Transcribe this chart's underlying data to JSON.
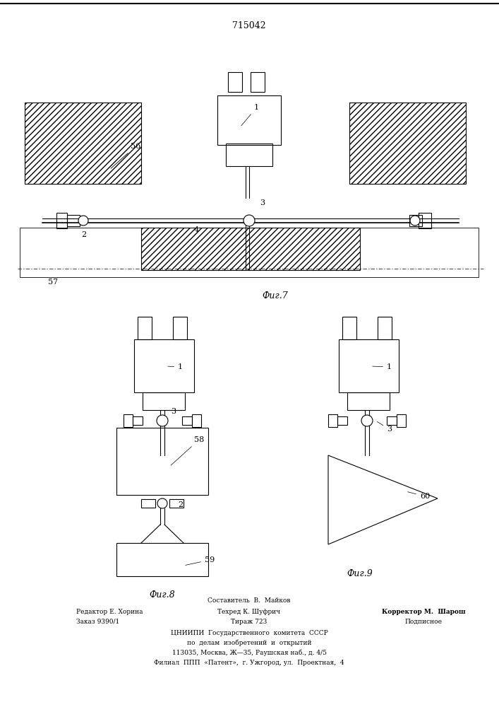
{
  "patent_number": "715042",
  "bg_color": "#ffffff",
  "line_color": "#000000",
  "fig7_label": "Фиг.7",
  "fig8_label": "Фиг.8",
  "fig9_label": "Фиг.9"
}
